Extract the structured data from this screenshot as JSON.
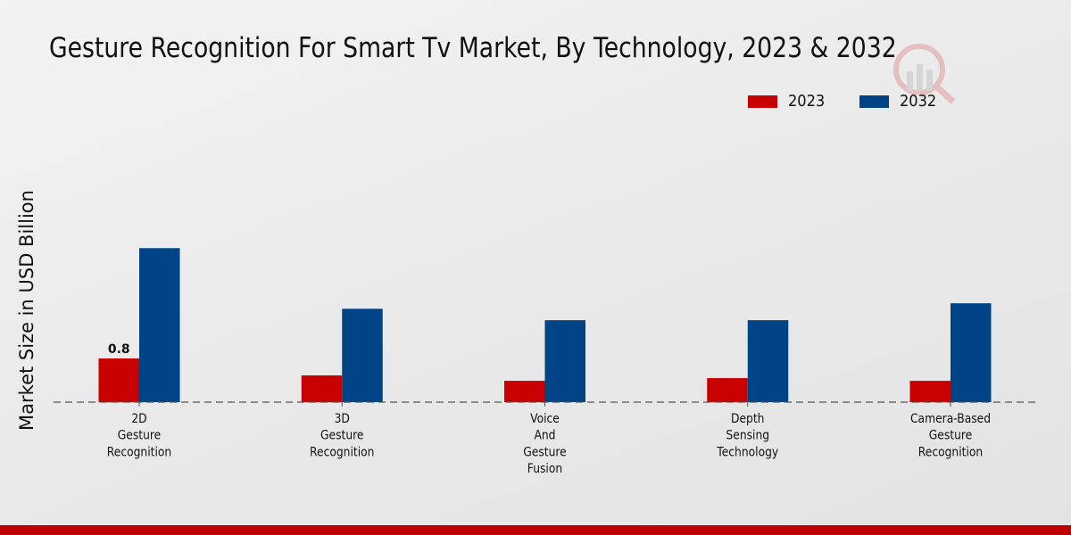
{
  "chart_data": {
    "type": "bar",
    "title": "Gesture Recognition For Smart Tv Market, By Technology, 2023 & 2032",
    "xlabel": "",
    "ylabel": "Market Size in USD Billion",
    "categories": [
      [
        "2D",
        "Gesture",
        "Recognition"
      ],
      [
        "3D",
        "Gesture",
        "Recognition"
      ],
      [
        "Voice",
        "And",
        "Gesture",
        "Fusion"
      ],
      [
        "Depth",
        "Sensing",
        "Technology"
      ],
      [
        "Camera-Based",
        "Gesture",
        "Recognition"
      ]
    ],
    "series": [
      {
        "name": "2023",
        "color": "#c80000",
        "values": [
          0.8,
          0.49,
          0.39,
          0.44,
          0.39
        ]
      },
      {
        "name": "2032",
        "color": "#004488",
        "values": [
          2.82,
          1.71,
          1.5,
          1.5,
          1.81
        ]
      }
    ],
    "data_labels": [
      {
        "series": 0,
        "index": 0,
        "text": "0.8"
      }
    ],
    "ylim": [
      0,
      3.2
    ],
    "grid": false,
    "legend_position": "top-right",
    "baseline_style": "dashed"
  },
  "footer_color": "#bf0000"
}
